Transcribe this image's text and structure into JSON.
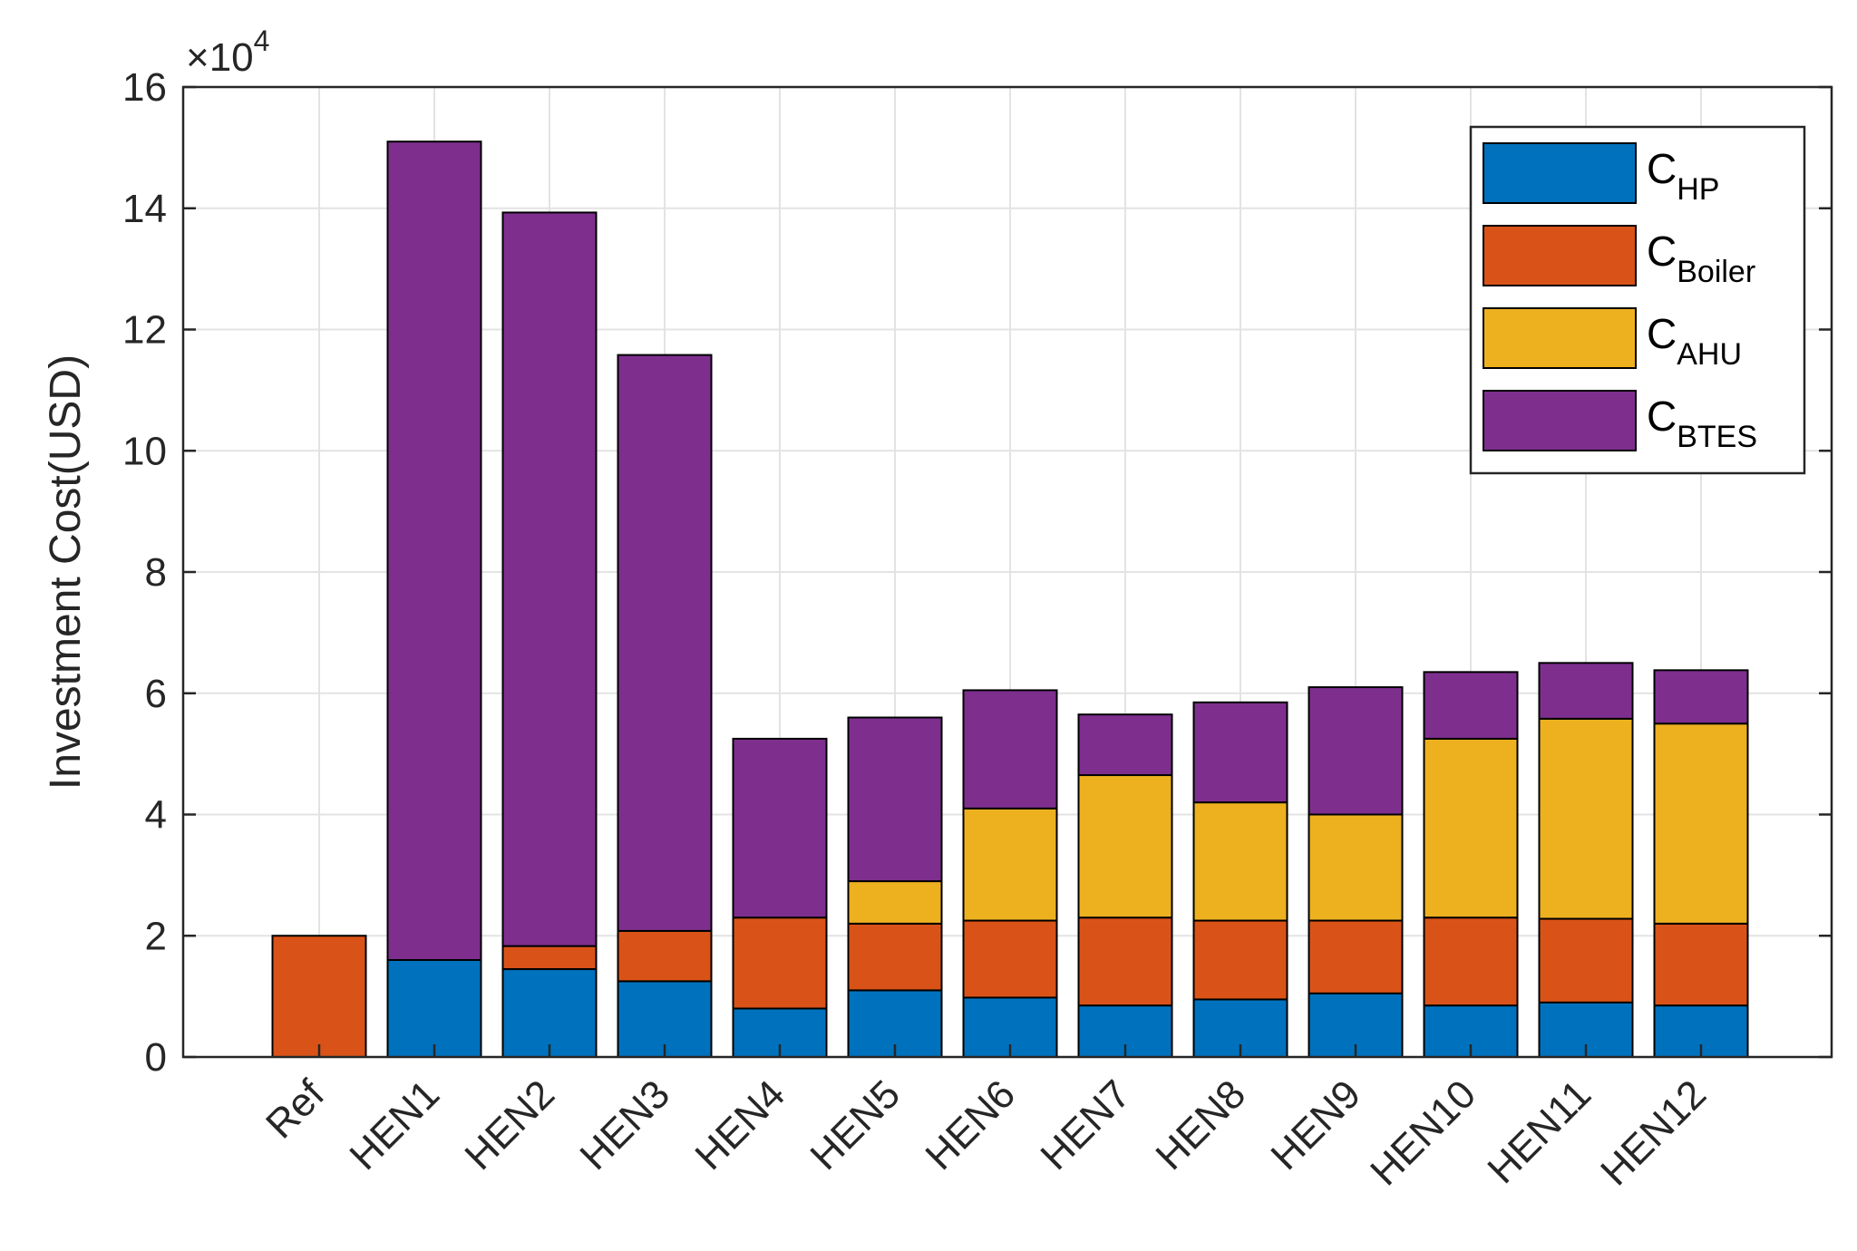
{
  "chart_data": {
    "type": "bar",
    "stacked": true,
    "title": "",
    "xlabel": "",
    "ylabel": "Investment Cost(USD)",
    "y_multiplier": "×10",
    "y_multiplier_exp": "4",
    "ylim": [
      0,
      16
    ],
    "yticks": [
      0,
      2,
      4,
      6,
      8,
      10,
      12,
      14,
      16
    ],
    "ytick_labels": [
      "0",
      "2",
      "4",
      "6",
      "8",
      "10",
      "12",
      "14",
      "16"
    ],
    "grid": true,
    "legend_position": "top-right",
    "categories": [
      "Ref",
      "HEN1",
      "HEN2",
      "HEN3",
      "HEN4",
      "HEN5",
      "HEN6",
      "HEN7",
      "HEN8",
      "HEN9",
      "HEN10",
      "HEN11",
      "HEN12"
    ],
    "series": [
      {
        "name": "C",
        "subscript": "HP",
        "color": "#0072BD",
        "values": [
          0,
          1.6,
          1.45,
          1.25,
          0.8,
          1.1,
          0.98,
          0.85,
          0.95,
          1.05,
          0.85,
          0.9,
          0.85
        ]
      },
      {
        "name": "C",
        "subscript": "Boiler",
        "color": "#D95319",
        "values": [
          2.0,
          0,
          0.38,
          0.83,
          1.5,
          1.1,
          1.27,
          1.45,
          1.3,
          1.2,
          1.45,
          1.38,
          1.35
        ]
      },
      {
        "name": "C",
        "subscript": "AHU",
        "color": "#EDB120",
        "values": [
          0,
          0,
          0,
          0,
          0,
          0.7,
          1.85,
          2.35,
          1.95,
          1.75,
          2.95,
          3.3,
          3.3
        ]
      },
      {
        "name": "C",
        "subscript": "BTES",
        "color": "#7E2F8E",
        "values": [
          0,
          13.5,
          12.1,
          9.5,
          2.95,
          2.7,
          1.95,
          1.0,
          1.65,
          2.1,
          1.1,
          0.92,
          0.88
        ]
      }
    ]
  }
}
